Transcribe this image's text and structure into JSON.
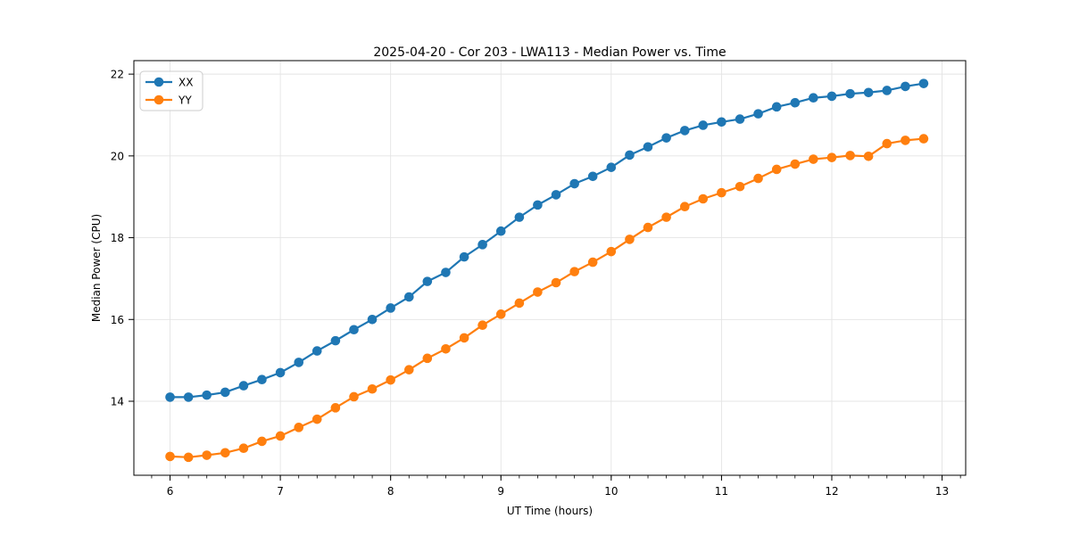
{
  "figure": {
    "background": "#ffffff",
    "frame_color": "#000000",
    "grid_color": "#e4e4e4"
  },
  "chart_data": {
    "type": "line",
    "title": "2025-04-20 - Cor 203 - LWA113 - Median Power vs. Time",
    "xlabel": "UT Time (hours)",
    "ylabel": "Median Power (CPU)",
    "xlim": [
      5.672,
      13.214
    ],
    "ylim": [
      12.19,
      22.33
    ],
    "x_major_ticks": [
      6,
      7,
      8,
      9,
      10,
      11,
      12,
      13
    ],
    "x_minor_step": 0.1666667,
    "y_major_ticks": [
      14,
      16,
      18,
      20,
      22
    ],
    "grid": true,
    "legend_position": "upper-left",
    "marker": "circle",
    "x": [
      6.0,
      6.167,
      6.333,
      6.5,
      6.667,
      6.833,
      7.0,
      7.167,
      7.333,
      7.5,
      7.667,
      7.833,
      8.0,
      8.167,
      8.333,
      8.5,
      8.667,
      8.833,
      9.0,
      9.167,
      9.333,
      9.5,
      9.667,
      9.833,
      10.0,
      10.167,
      10.333,
      10.5,
      10.667,
      10.833,
      11.0,
      11.167,
      11.333,
      11.5,
      11.667,
      11.833,
      12.0,
      12.167,
      12.333,
      12.5,
      12.667,
      12.833
    ],
    "series": [
      {
        "name": "XX",
        "color": "#1f77b4",
        "values": [
          14.1,
          14.1,
          14.15,
          14.22,
          14.38,
          14.53,
          14.7,
          14.95,
          15.23,
          15.48,
          15.75,
          16.0,
          16.28,
          16.55,
          16.93,
          17.15,
          17.53,
          17.83,
          18.16,
          18.5,
          18.8,
          19.05,
          19.32,
          19.5,
          19.72,
          20.02,
          20.22,
          20.44,
          20.62,
          20.75,
          20.83,
          20.9,
          21.03,
          21.2,
          21.3,
          21.42,
          21.46,
          21.52,
          21.55,
          21.6,
          21.7,
          21.77
        ]
      },
      {
        "name": "YY",
        "color": "#ff7f0e",
        "values": [
          12.65,
          12.63,
          12.68,
          12.74,
          12.85,
          13.02,
          13.15,
          13.36,
          13.56,
          13.84,
          14.11,
          14.3,
          14.52,
          14.77,
          15.05,
          15.28,
          15.55,
          15.86,
          16.13,
          16.4,
          16.67,
          16.9,
          17.17,
          17.4,
          17.66,
          17.96,
          18.25,
          18.5,
          18.76,
          18.95,
          19.1,
          19.25,
          19.45,
          19.67,
          19.8,
          19.92,
          19.96,
          20.01,
          19.99,
          20.3,
          20.38,
          20.42
        ]
      }
    ]
  }
}
